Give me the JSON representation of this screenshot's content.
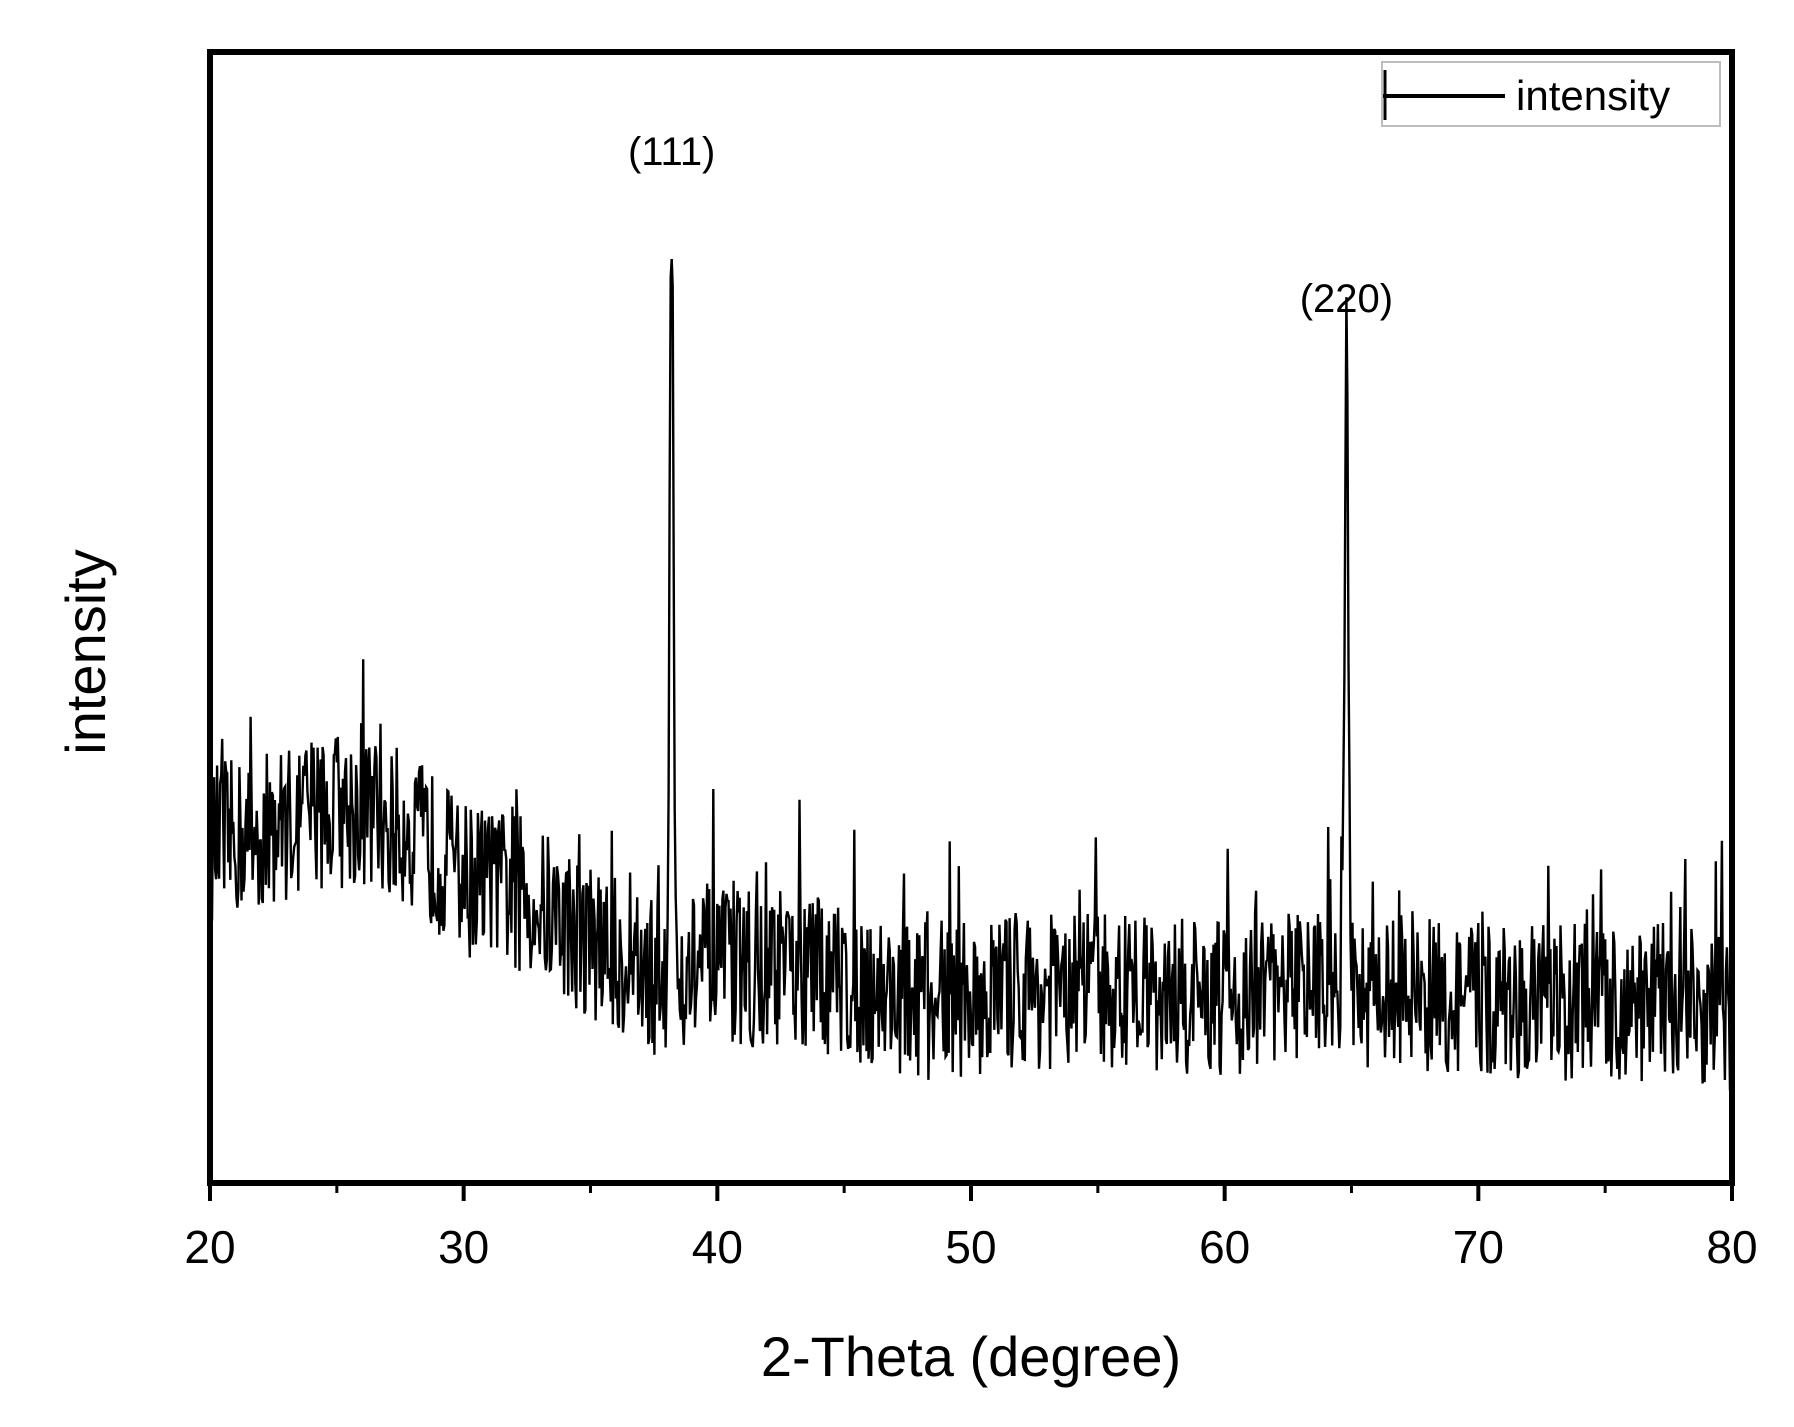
{
  "chart_data": {
    "type": "line",
    "title": "",
    "xlabel": "2-Theta (degree)",
    "ylabel": "intensity",
    "xlim": [
      20,
      80
    ],
    "ylim": [
      0,
      100
    ],
    "y_tick_labels_shown": false,
    "grid": false,
    "legend_position": "top-right",
    "x_ticks": [
      20,
      30,
      40,
      50,
      60,
      70,
      80
    ],
    "series": [
      {
        "name": "intensity",
        "color": "#000000",
        "baseline": [
          [
            20,
            30
          ],
          [
            22,
            31
          ],
          [
            24,
            33
          ],
          [
            26,
            33
          ],
          [
            28,
            31
          ],
          [
            30,
            27
          ],
          [
            32,
            26
          ],
          [
            34,
            23
          ],
          [
            36,
            20
          ],
          [
            37.6,
            18
          ],
          [
            39,
            19
          ],
          [
            42,
            19
          ],
          [
            45,
            18
          ],
          [
            48,
            16
          ],
          [
            52,
            17
          ],
          [
            56,
            17
          ],
          [
            60,
            16
          ],
          [
            64,
            18
          ],
          [
            66,
            17
          ],
          [
            70,
            16
          ],
          [
            74,
            16
          ],
          [
            78,
            16
          ],
          [
            80,
            15
          ]
        ],
        "peaks": [
          {
            "x": 38.2,
            "y": 87,
            "label": "(111)"
          },
          {
            "x": 64.8,
            "y": 74,
            "label": "(220)"
          }
        ],
        "noise_amplitude": 7
      }
    ]
  }
}
